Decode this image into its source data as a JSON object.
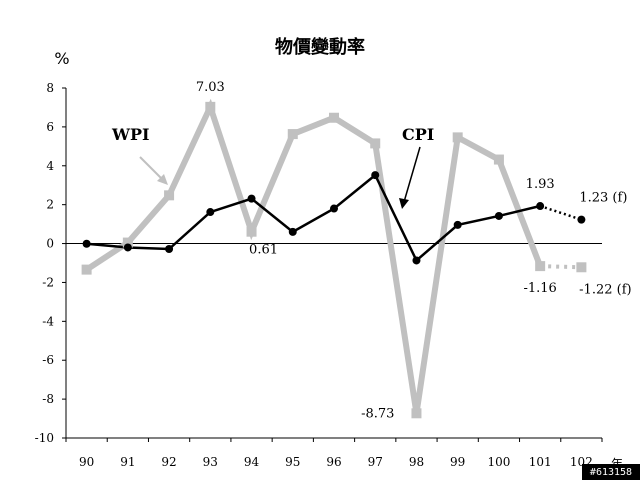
{
  "chart_data": {
    "type": "line",
    "title": "物價變動率",
    "ylabel": "%",
    "xlabel": "年",
    "ylim": [
      -10,
      8
    ],
    "yticks": [
      "8",
      "6",
      "4",
      "2",
      "0",
      "-2",
      "-4",
      "-6",
      "-8",
      "-10"
    ],
    "categories": [
      "90",
      "91",
      "92",
      "93",
      "94",
      "95",
      "96",
      "97",
      "98",
      "99",
      "100",
      "101",
      "102"
    ],
    "grid": false,
    "series": [
      {
        "name": "WPI",
        "color": "#c0c0c0",
        "marker": "square",
        "values": [
          -1.34,
          0.05,
          2.48,
          7.03,
          0.61,
          5.63,
          6.47,
          5.15,
          -8.73,
          5.46,
          4.32,
          -1.16,
          -1.22
        ],
        "forecast_from_index": 11
      },
      {
        "name": "CPI",
        "color": "#000000",
        "marker": "circle",
        "values": [
          -0.01,
          -0.2,
          -0.28,
          1.62,
          2.31,
          0.6,
          1.8,
          3.52,
          -0.87,
          0.96,
          1.42,
          1.93,
          1.23
        ],
        "forecast_from_index": 11
      }
    ],
    "annotations": [
      {
        "text": "7.03",
        "series": 0,
        "index": 3
      },
      {
        "text": "0.61",
        "series": 0,
        "index": 4
      },
      {
        "text": "-8.73",
        "series": 0,
        "index": 8
      },
      {
        "text": "-1.16",
        "series": 0,
        "index": 11
      },
      {
        "text": "-1.22 (f)",
        "series": 0,
        "index": 12
      },
      {
        "text": "1.93",
        "series": 1,
        "index": 11
      },
      {
        "text": "1.23 (f)",
        "series": 1,
        "index": 12
      }
    ]
  },
  "watermark": "#613158"
}
